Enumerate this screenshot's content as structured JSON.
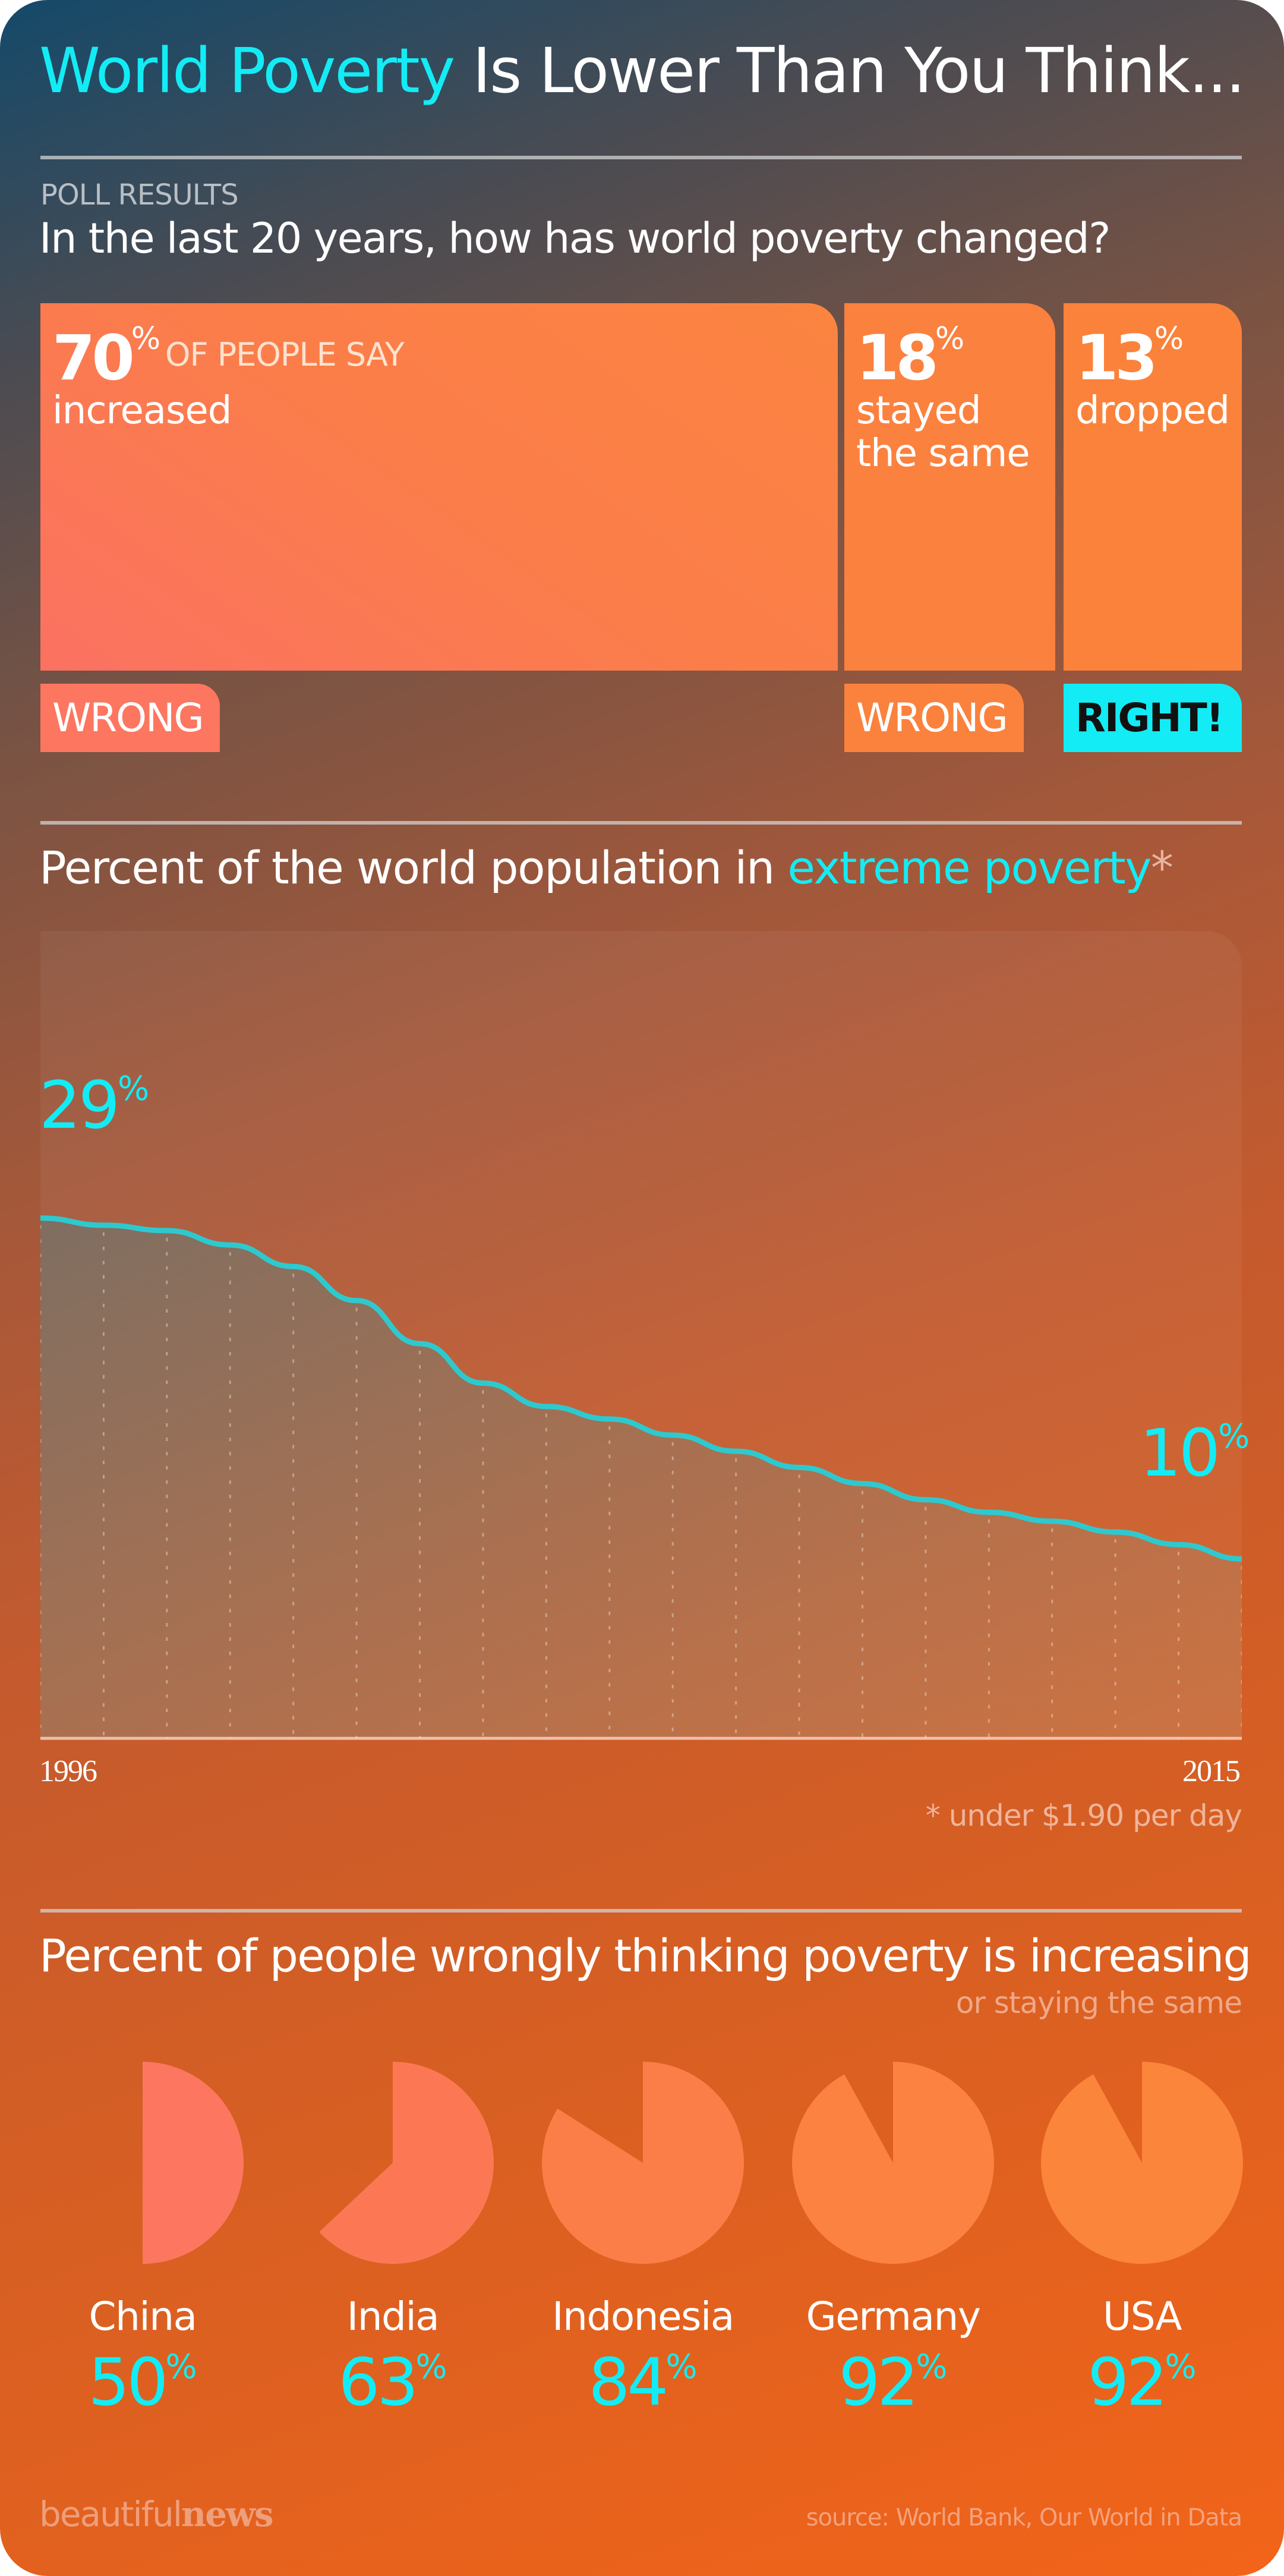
{
  "header": {
    "title_highlight": "World Poverty",
    "title_rest": " Is Lower Than You Think..."
  },
  "poll": {
    "label": "POLL RESULTS",
    "question": "In the last 20 years, how has world poverty changed?",
    "results": [
      {
        "percent": "70",
        "unit": "%",
        "prefix": "OF PEOPLE SAY",
        "answer_lines": [
          "increased"
        ],
        "verdict": "WRONG"
      },
      {
        "percent": "18",
        "unit": "%",
        "answer_lines": [
          "stayed",
          "the same"
        ],
        "verdict": "WRONG"
      },
      {
        "percent": "13",
        "unit": "%",
        "answer_lines": [
          "dropped"
        ],
        "verdict": "RIGHT!"
      }
    ]
  },
  "line_section": {
    "title_prefix": "Percent of the world population in ",
    "title_highlight": "extreme poverty",
    "title_asterisk": "*",
    "start_label": "29",
    "end_label": "10",
    "unit": "%",
    "x_start": "1996",
    "x_end": "2015",
    "footnote": "* under $1.90 per day"
  },
  "pie_section": {
    "title": "Percent of people wrongly thinking poverty is increasing",
    "subtitle": "or staying the same",
    "countries": [
      {
        "name": "China",
        "value": "50",
        "unit": "%"
      },
      {
        "name": "India",
        "value": "63",
        "unit": "%"
      },
      {
        "name": "Indonesia",
        "value": "84",
        "unit": "%"
      },
      {
        "name": "Germany",
        "value": "92",
        "unit": "%"
      },
      {
        "name": "USA",
        "value": "92",
        "unit": "%"
      }
    ]
  },
  "footer": {
    "logo_light": "beautiful",
    "logo_bold": "news",
    "source": "source: World Bank, Our World in Data"
  },
  "colors": {
    "accent_cyan": "#13ecf5",
    "bar_orange": "#fb823d",
    "bar_salmon": "#fd7660",
    "line": "#2ec9cf"
  },
  "chart_data": [
    {
      "type": "bar",
      "title": "In the last 20 years, how has world poverty changed?",
      "categories": [
        "increased",
        "stayed the same",
        "dropped"
      ],
      "values": [
        70,
        18,
        13
      ],
      "labels": [
        "WRONG",
        "WRONG",
        "RIGHT!"
      ],
      "ylabel": "% of people"
    },
    {
      "type": "area",
      "title": "Percent of the world population in extreme poverty*",
      "x": [
        1996,
        1997,
        1998,
        1999,
        2000,
        2001,
        2002,
        2003,
        2004,
        2005,
        2006,
        2007,
        2008,
        2009,
        2010,
        2011,
        2012,
        2013,
        2014,
        2015
      ],
      "values": [
        29.0,
        28.6,
        28.3,
        27.5,
        26.3,
        24.4,
        22.0,
        19.8,
        18.5,
        17.8,
        16.9,
        16.0,
        15.1,
        14.2,
        13.3,
        12.6,
        12.1,
        11.5,
        10.8,
        10.0
      ],
      "annotations": [
        "29%",
        "10%"
      ],
      "xlabel": "",
      "ylabel": "",
      "footnote": "* under $1.90 per day",
      "grid": "vertical dotted lines per year"
    },
    {
      "type": "pie",
      "title": "Percent of people wrongly thinking poverty is increasing or staying the same",
      "categories": [
        "China",
        "India",
        "Indonesia",
        "Germany",
        "USA"
      ],
      "values": [
        50,
        63,
        84,
        92,
        92
      ]
    }
  ]
}
